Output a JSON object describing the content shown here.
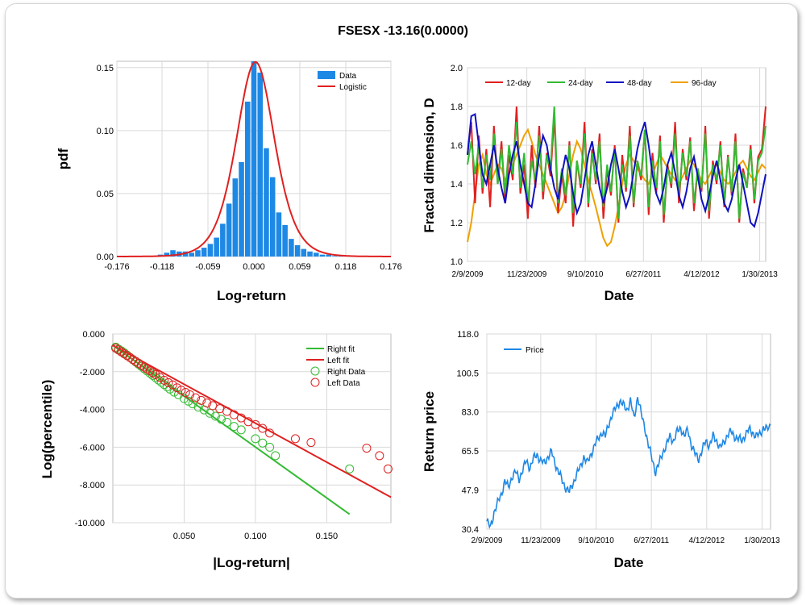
{
  "title": "FSESX -13.16(0.0000)",
  "colors": {
    "data_blue": "#1e88e5",
    "logistic_red": "#e02020",
    "d12": "#e02020",
    "d24": "#33bb33",
    "d48": "#1010c0",
    "d96": "#f0a000",
    "right_fit": "#33bb33",
    "left_fit": "#e02020",
    "price": "#1e88e5",
    "grid": "#d9d9d9"
  },
  "chart_data": [
    {
      "type": "bar",
      "xlabel": "Log-return",
      "ylabel": "pdf",
      "xlim": [
        -0.176,
        0.176
      ],
      "ylim": [
        0,
        0.155
      ],
      "xticks": [
        "-0.176",
        "-0.118",
        "-0.059",
        "0.000",
        "0.059",
        "0.118",
        "0.176"
      ],
      "yticks": [
        "0.00",
        "0.05",
        "0.10",
        "0.15"
      ],
      "legend": [
        "Data",
        "Logistic"
      ],
      "legend_position": "top-right",
      "bin_centers": [
        -0.176,
        -0.168,
        -0.16,
        -0.152,
        -0.144,
        -0.136,
        -0.128,
        -0.12,
        -0.112,
        -0.104,
        -0.096,
        -0.088,
        -0.08,
        -0.072,
        -0.064,
        -0.056,
        -0.048,
        -0.04,
        -0.032,
        -0.024,
        -0.016,
        -0.008,
        0.0,
        0.008,
        0.016,
        0.024,
        0.032,
        0.04,
        0.048,
        0.056,
        0.064,
        0.072,
        0.08,
        0.088,
        0.096,
        0.104,
        0.112,
        0.12,
        0.128,
        0.136,
        0.144,
        0.152,
        0.16
      ],
      "values": [
        0.0,
        0.0,
        0.0,
        0.0005,
        0.0,
        0.0003,
        0.0005,
        0.0015,
        0.003,
        0.005,
        0.004,
        0.004,
        0.003,
        0.005,
        0.007,
        0.01,
        0.015,
        0.026,
        0.042,
        0.062,
        0.075,
        0.123,
        0.155,
        0.146,
        0.086,
        0.063,
        0.035,
        0.025,
        0.014,
        0.009,
        0.006,
        0.004,
        0.003,
        0.0015,
        0.0015,
        0.0005,
        0.0003,
        0.0005,
        0.0,
        0.0002,
        0.0002,
        0.0,
        0.0
      ],
      "logistic": {
        "location": 0.002,
        "scale": 0.0165
      }
    },
    {
      "type": "line",
      "xlabel": "Date",
      "ylabel": "Fractal dimension, D",
      "ylim": [
        1.0,
        2.0
      ],
      "xticks": [
        "2/9/2009",
        "11/23/2009",
        "9/10/2010",
        "6/27/2011",
        "4/12/2012",
        "1/30/2013"
      ],
      "yticks": [
        "1.0",
        "1.2",
        "1.4",
        "1.6",
        "1.8",
        "2.0"
      ],
      "legend_position": "top",
      "series": [
        {
          "name": "12-day",
          "values": [
            1.55,
            1.72,
            1.3,
            1.65,
            1.35,
            1.58,
            1.28,
            1.7,
            1.4,
            1.62,
            1.3,
            1.55,
            1.42,
            1.8,
            1.35,
            1.5,
            1.22,
            1.6,
            1.38,
            1.7,
            1.32,
            1.56,
            1.44,
            1.75,
            1.25,
            1.45,
            1.3,
            1.62,
            1.18,
            1.52,
            1.38,
            1.72,
            1.28,
            1.58,
            1.4,
            1.66,
            1.22,
            1.48,
            1.34,
            1.6,
            1.2,
            1.55,
            1.36,
            1.7,
            1.28,
            1.52,
            1.42,
            1.68,
            1.24,
            1.56,
            1.35,
            1.65,
            1.2,
            1.5,
            1.38,
            1.72,
            1.3,
            1.58,
            1.42,
            1.64,
            1.26,
            1.48,
            1.36,
            1.7,
            1.22,
            1.52,
            1.4,
            1.62,
            1.28,
            1.55,
            1.34,
            1.66,
            1.2,
            1.48,
            1.38,
            1.6,
            1.3,
            1.54,
            1.58,
            1.8
          ]
        },
        {
          "name": "24-day",
          "values": [
            1.5,
            1.62,
            1.45,
            1.6,
            1.38,
            1.55,
            1.42,
            1.66,
            1.4,
            1.58,
            1.35,
            1.6,
            1.45,
            1.72,
            1.38,
            1.56,
            1.3,
            1.52,
            1.42,
            1.65,
            1.36,
            1.55,
            1.48,
            1.8,
            1.3,
            1.48,
            1.34,
            1.6,
            1.25,
            1.52,
            1.4,
            1.66,
            1.3,
            1.56,
            1.42,
            1.62,
            1.28,
            1.5,
            1.36,
            1.58,
            1.22,
            1.5,
            1.38,
            1.65,
            1.3,
            1.52,
            1.44,
            1.68,
            1.28,
            1.52,
            1.38,
            1.62,
            1.24,
            1.48,
            1.4,
            1.66,
            1.34,
            1.56,
            1.44,
            1.62,
            1.3,
            1.48,
            1.38,
            1.66,
            1.26,
            1.5,
            1.42,
            1.6,
            1.3,
            1.54,
            1.36,
            1.62,
            1.22,
            1.46,
            1.38,
            1.58,
            1.32,
            1.52,
            1.56,
            1.7
          ]
        },
        {
          "name": "48-day",
          "values": [
            1.55,
            1.75,
            1.76,
            1.6,
            1.45,
            1.4,
            1.5,
            1.6,
            1.48,
            1.38,
            1.3,
            1.45,
            1.55,
            1.62,
            1.5,
            1.4,
            1.3,
            1.28,
            1.4,
            1.55,
            1.65,
            1.6,
            1.48,
            1.38,
            1.32,
            1.45,
            1.55,
            1.48,
            1.35,
            1.25,
            1.3,
            1.42,
            1.55,
            1.62,
            1.5,
            1.38,
            1.3,
            1.38,
            1.5,
            1.58,
            1.48,
            1.36,
            1.28,
            1.34,
            1.46,
            1.58,
            1.66,
            1.72,
            1.6,
            1.45,
            1.35,
            1.3,
            1.38,
            1.5,
            1.56,
            1.46,
            1.34,
            1.28,
            1.36,
            1.48,
            1.54,
            1.44,
            1.32,
            1.26,
            1.34,
            1.44,
            1.52,
            1.42,
            1.3,
            1.26,
            1.32,
            1.42,
            1.5,
            1.4,
            1.3,
            1.2,
            1.18,
            1.25,
            1.35,
            1.45
          ]
        },
        {
          "name": "96-day",
          "values": [
            1.1,
            1.2,
            1.35,
            1.5,
            1.55,
            1.45,
            1.4,
            1.45,
            1.5,
            1.48,
            1.42,
            1.45,
            1.5,
            1.55,
            1.6,
            1.65,
            1.68,
            1.62,
            1.55,
            1.5,
            1.45,
            1.4,
            1.35,
            1.3,
            1.25,
            1.28,
            1.35,
            1.45,
            1.55,
            1.62,
            1.58,
            1.5,
            1.42,
            1.35,
            1.28,
            1.2,
            1.12,
            1.08,
            1.1,
            1.18,
            1.28,
            1.4,
            1.5,
            1.55,
            1.52,
            1.48,
            1.45,
            1.42,
            1.4,
            1.45,
            1.5,
            1.55,
            1.52,
            1.48,
            1.45,
            1.42,
            1.4,
            1.44,
            1.48,
            1.52,
            1.5,
            1.46,
            1.42,
            1.4,
            1.44,
            1.48,
            1.5,
            1.46,
            1.42,
            1.4,
            1.42,
            1.46,
            1.5,
            1.52,
            1.48,
            1.44,
            1.42,
            1.46,
            1.5,
            1.48
          ]
        }
      ]
    },
    {
      "type": "scatter",
      "xlabel": "|Log-return|",
      "ylabel": "Log(percentile)",
      "xlim": [
        0.0,
        0.195
      ],
      "ylim": [
        -10.0,
        0.0
      ],
      "xticks": [
        "0.050",
        "0.100",
        "0.150"
      ],
      "yticks": [
        "0.000",
        "-2.000",
        "-4.000",
        "-6.000",
        "-8.000",
        "-10.000"
      ],
      "legend_position": "top-right",
      "right_fit": {
        "name": "Right fit",
        "x": [
          0.0,
          0.166
        ],
        "y": [
          -0.6,
          -9.55
        ]
      },
      "left_fit": {
        "name": "Left fit",
        "x": [
          0.0,
          0.195
        ],
        "y": [
          -0.6,
          -8.65
        ]
      },
      "right_data": {
        "name": "Right Data",
        "x": [
          0.002,
          0.004,
          0.006,
          0.008,
          0.01,
          0.012,
          0.014,
          0.016,
          0.018,
          0.02,
          0.022,
          0.024,
          0.026,
          0.028,
          0.03,
          0.032,
          0.034,
          0.036,
          0.038,
          0.04,
          0.043,
          0.046,
          0.05,
          0.053,
          0.056,
          0.06,
          0.064,
          0.068,
          0.072,
          0.076,
          0.08,
          0.085,
          0.09,
          0.1,
          0.105,
          0.11,
          0.114,
          0.166
        ],
        "y": [
          -0.7,
          -0.8,
          -0.9,
          -1.0,
          -1.12,
          -1.24,
          -1.36,
          -1.48,
          -1.6,
          -1.72,
          -1.84,
          -1.96,
          -2.08,
          -2.2,
          -2.32,
          -2.44,
          -2.56,
          -2.68,
          -2.8,
          -2.92,
          -3.08,
          -3.22,
          -3.42,
          -3.56,
          -3.7,
          -3.88,
          -4.02,
          -4.2,
          -4.36,
          -4.52,
          -4.68,
          -4.9,
          -5.08,
          -5.55,
          -5.78,
          -6.0,
          -6.45,
          -7.15
        ]
      },
      "left_data": {
        "name": "Left Data",
        "x": [
          0.002,
          0.004,
          0.006,
          0.008,
          0.01,
          0.012,
          0.014,
          0.016,
          0.018,
          0.02,
          0.022,
          0.024,
          0.026,
          0.028,
          0.03,
          0.033,
          0.036,
          0.039,
          0.042,
          0.045,
          0.048,
          0.051,
          0.054,
          0.058,
          0.062,
          0.066,
          0.07,
          0.075,
          0.08,
          0.085,
          0.09,
          0.095,
          0.1,
          0.105,
          0.11,
          0.128,
          0.139,
          0.178,
          0.187,
          0.193
        ],
        "y": [
          -0.75,
          -0.85,
          -0.95,
          -1.05,
          -1.15,
          -1.25,
          -1.35,
          -1.45,
          -1.55,
          -1.65,
          -1.75,
          -1.85,
          -1.95,
          -2.05,
          -2.15,
          -2.3,
          -2.45,
          -2.58,
          -2.7,
          -2.85,
          -2.98,
          -3.1,
          -3.22,
          -3.38,
          -3.52,
          -3.66,
          -3.8,
          -3.96,
          -4.1,
          -4.28,
          -4.45,
          -4.65,
          -4.8,
          -5.0,
          -5.25,
          -5.55,
          -5.75,
          -6.05,
          -6.45,
          -7.15
        ]
      }
    },
    {
      "type": "line",
      "xlabel": "Date",
      "ylabel": "Return price",
      "ylim": [
        30.4,
        118.0
      ],
      "xticks": [
        "2/9/2009",
        "11/23/2009",
        "9/10/2010",
        "6/27/2011",
        "4/12/2012",
        "1/30/2013"
      ],
      "yticks": [
        "30.4",
        "47.9",
        "65.5",
        "83.0",
        "100.5",
        "118.0"
      ],
      "legend_position": "top-left",
      "series": [
        {
          "name": "Price",
          "values": [
            34,
            31,
            38,
            42,
            46,
            52,
            49,
            54,
            56,
            53,
            57,
            61,
            58,
            62,
            64,
            61,
            60,
            63,
            65,
            60,
            56,
            52,
            49,
            47,
            51,
            55,
            58,
            63,
            60,
            64,
            68,
            71,
            74,
            72,
            78,
            82,
            85,
            88,
            86,
            84,
            88,
            80,
            90,
            82,
            76,
            68,
            62,
            56,
            60,
            65,
            68,
            72,
            70,
            74,
            76,
            72,
            75,
            68,
            64,
            62,
            66,
            70,
            68,
            72,
            70,
            67,
            69,
            73,
            74,
            72,
            71,
            70,
            73,
            75,
            74,
            72,
            73,
            76,
            75,
            77
          ]
        }
      ]
    }
  ],
  "panels": {
    "hist": {
      "xlabel": "Log-return",
      "ylabel": "pdf",
      "xticks": [
        "-0.176",
        "-0.118",
        "-0.059",
        "0.000",
        "0.059",
        "0.118",
        "0.176"
      ],
      "yticks": [
        "0.00",
        "0.05",
        "0.10",
        "0.15"
      ],
      "legend_data": "Data",
      "legend_fit": "Logistic"
    },
    "fractal": {
      "xlabel": "Date",
      "ylabel": "Fractal dimension, D",
      "xticks": [
        "2/9/2009",
        "11/23/2009",
        "9/10/2010",
        "6/27/2011",
        "4/12/2012",
        "1/30/2013"
      ],
      "yticks": [
        "1.0",
        "1.2",
        "1.4",
        "1.6",
        "1.8",
        "2.0"
      ],
      "legend": [
        "12-day",
        "24-day",
        "48-day",
        "96-day"
      ]
    },
    "tail": {
      "xlabel": "|Log-return|",
      "ylabel": "Log(percentile)",
      "xticks": [
        "0.050",
        "0.100",
        "0.150"
      ],
      "yticks": [
        "0.000",
        "-2.000",
        "-4.000",
        "-6.000",
        "-8.000",
        "-10.000"
      ],
      "legend": [
        "Right fit",
        "Left fit",
        "Right Data",
        "Left Data"
      ]
    },
    "price": {
      "xlabel": "Date",
      "ylabel": "Return price",
      "xticks": [
        "2/9/2009",
        "11/23/2009",
        "9/10/2010",
        "6/27/2011",
        "4/12/2012",
        "1/30/2013"
      ],
      "yticks": [
        "30.4",
        "47.9",
        "65.5",
        "83.0",
        "100.5",
        "118.0"
      ],
      "legend": [
        "Price"
      ]
    }
  }
}
